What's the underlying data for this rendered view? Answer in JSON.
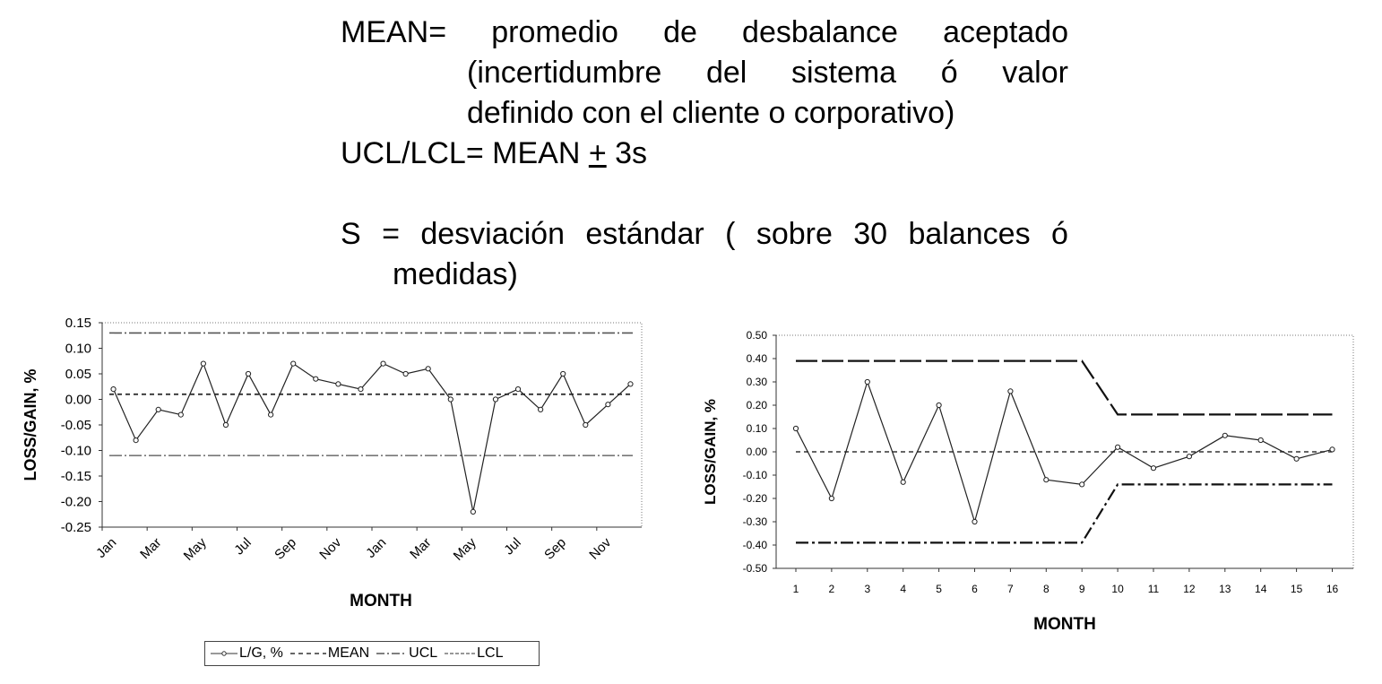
{
  "definitions": {
    "mean_label": "MEAN=",
    "mean_words": [
      "promedio",
      "de",
      "desbalance",
      "aceptado"
    ],
    "mean_line2": [
      "(incertidumbre",
      "del",
      "sistema",
      "ó",
      "valor"
    ],
    "mean_line3": "definido con el cliente o corporativo)",
    "ucl_prefix": "UCL/LCL= MEAN ",
    "ucl_pm": "+",
    "ucl_suffix": " 3s",
    "s_words": [
      "S",
      "=",
      "desviación",
      "estándar",
      "(",
      "sobre",
      "30",
      "balances",
      "ó"
    ],
    "s_line2": "medidas)"
  },
  "legend": {
    "lg": "L/G, %",
    "mean": "MEAN",
    "ucl": "UCL",
    "lcl": "LCL"
  },
  "chart_data": [
    {
      "type": "line",
      "ylabel": "LOSS/GAIN, %",
      "xlabel": "MONTH",
      "ylim": [
        -0.25,
        0.15
      ],
      "yticks": [
        "0.15",
        "0.10",
        "0.05",
        "0.00",
        "-0.05",
        "-0.10",
        "-0.15",
        "-0.20",
        "-0.25"
      ],
      "xticks": [
        "Jan",
        "Mar",
        "May",
        "Jul",
        "Sep",
        "Nov",
        "Jan",
        "Mar",
        "May",
        "Jul",
        "Sep",
        "Nov"
      ],
      "n_points": 24,
      "series": [
        {
          "name": "L/G, %",
          "values": [
            0.02,
            -0.08,
            -0.02,
            -0.03,
            0.07,
            -0.05,
            0.05,
            -0.03,
            0.07,
            0.04,
            0.03,
            0.02,
            0.07,
            0.05,
            0.06,
            0.0,
            -0.22,
            0.0,
            0.02,
            -0.02,
            0.05,
            -0.05,
            -0.01,
            0.03
          ]
        },
        {
          "name": "MEAN",
          "values": [
            0.01,
            0.01
          ]
        },
        {
          "name": "UCL",
          "values": [
            0.13,
            0.13
          ]
        },
        {
          "name": "LCL",
          "values": [
            -0.11,
            -0.11
          ]
        }
      ],
      "grid": false,
      "legend": "bottom"
    },
    {
      "type": "line",
      "ylabel": "LOSS/GAIN, %",
      "xlabel": "MONTH",
      "ylim": [
        -0.5,
        0.5
      ],
      "yticks": [
        "0.50",
        "0.40",
        "0.30",
        "0.20",
        "0.10",
        "0.00",
        "-0.10",
        "-0.20",
        "-0.30",
        "-0.40",
        "-0.50"
      ],
      "xticks": [
        "1",
        "2",
        "3",
        "4",
        "5",
        "6",
        "7",
        "8",
        "9",
        "10",
        "11",
        "12",
        "13",
        "14",
        "15",
        "16"
      ],
      "x": [
        1,
        2,
        3,
        4,
        5,
        6,
        7,
        8,
        9,
        10,
        11,
        12,
        13,
        14,
        15,
        16
      ],
      "series": [
        {
          "values": [
            0.1,
            -0.2,
            0.3,
            -0.13,
            0.2,
            -0.3,
            0.26,
            -0.12,
            -0.14,
            0.02,
            -0.07,
            -0.02,
            0.07,
            0.05,
            -0.03,
            0.01
          ]
        },
        {
          "values": [
            0,
            0,
            0,
            0,
            0,
            0,
            0,
            0,
            0,
            0,
            0,
            0,
            0,
            0,
            0,
            0
          ]
        },
        {
          "values": [
            0.39,
            0.39,
            0.39,
            0.39,
            0.39,
            0.39,
            0.39,
            0.39,
            0.39,
            0.16,
            0.16,
            0.16,
            0.16,
            0.16,
            0.16,
            0.16
          ]
        },
        {
          "values": [
            -0.39,
            -0.39,
            -0.39,
            -0.39,
            -0.39,
            -0.39,
            -0.39,
            -0.39,
            -0.39,
            -0.14,
            -0.14,
            -0.14,
            -0.14,
            -0.14,
            -0.14,
            -0.14
          ]
        }
      ],
      "grid": false
    }
  ]
}
